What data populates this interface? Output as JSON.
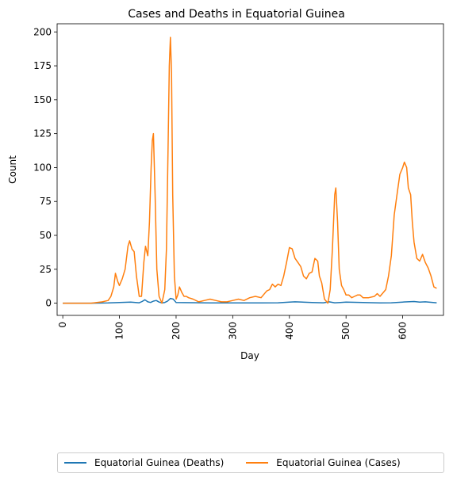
{
  "chart_data": {
    "type": "line",
    "title": "Cases and Deaths in Equatorial Guinea",
    "xlabel": "Day",
    "ylabel": "Count",
    "xlim": [
      -10,
      672
    ],
    "ylim": [
      -9,
      206
    ],
    "xticks": [
      0,
      100,
      200,
      300,
      400,
      500,
      600
    ],
    "yticks": [
      0,
      25,
      50,
      75,
      100,
      125,
      150,
      175,
      200
    ],
    "legend_position": "bottom-center",
    "grid": false,
    "series": [
      {
        "name": "Equatorial Guinea (Deaths)",
        "color": "#1f77b4",
        "x": [
          0,
          50,
          80,
          100,
          120,
          135,
          140,
          145,
          150,
          155,
          160,
          165,
          170,
          175,
          180,
          185,
          190,
          195,
          200,
          260,
          300,
          350,
          380,
          400,
          410,
          440,
          460,
          470,
          480,
          490,
          500,
          560,
          580,
          600,
          620,
          630,
          640,
          660
        ],
        "y": [
          0,
          0,
          0.2,
          0.5,
          0.8,
          0.3,
          1.2,
          2.5,
          1.0,
          0.5,
          1.5,
          2.0,
          0.8,
          0.2,
          0.5,
          1.5,
          3.5,
          3.0,
          0.5,
          0.2,
          0.2,
          0.2,
          0.3,
          0.8,
          1.0,
          0.5,
          0.3,
          1.0,
          0.3,
          0.5,
          0.8,
          0.2,
          0.3,
          0.8,
          1.2,
          0.8,
          1.0,
          0.3
        ]
      },
      {
        "name": "Equatorial Guinea (Cases)",
        "color": "#ff7f0e",
        "x": [
          0,
          50,
          60,
          70,
          80,
          85,
          90,
          93,
          97,
          100,
          105,
          110,
          115,
          118,
          122,
          126,
          130,
          135,
          139,
          143,
          146,
          150,
          153,
          156,
          158,
          160,
          163,
          166,
          170,
          175,
          180,
          183,
          186,
          188,
          190,
          192,
          194,
          197,
          200,
          203,
          206,
          210,
          214,
          218,
          222,
          230,
          240,
          250,
          260,
          270,
          280,
          290,
          300,
          310,
          320,
          330,
          340,
          350,
          360,
          365,
          370,
          375,
          380,
          385,
          390,
          395,
          400,
          405,
          410,
          415,
          420,
          425,
          430,
          435,
          440,
          445,
          450,
          453,
          457,
          462,
          468,
          472,
          476,
          480,
          482,
          485,
          488,
          492,
          496,
          500,
          505,
          510,
          515,
          520,
          525,
          530,
          540,
          550,
          555,
          560,
          570,
          575,
          580,
          585,
          590,
          595,
          600,
          603,
          607,
          610,
          614,
          617,
          620,
          625,
          630,
          635,
          640,
          645,
          650,
          655,
          660
        ],
        "y": [
          0,
          0,
          0.5,
          1,
          2,
          5,
          12,
          22,
          16,
          13,
          18,
          25,
          42,
          46,
          40,
          38,
          20,
          5,
          5,
          30,
          42,
          35,
          60,
          100,
          120,
          125,
          80,
          25,
          5,
          0,
          10,
          40,
          120,
          175,
          196,
          170,
          80,
          20,
          3,
          6,
          12,
          8,
          5,
          5,
          4,
          3,
          1,
          2,
          3,
          2,
          1,
          1,
          2,
          3,
          2,
          4,
          5,
          4,
          9,
          10,
          14,
          12,
          14,
          13,
          20,
          30,
          41,
          40,
          33,
          30,
          27,
          20,
          18,
          22,
          23,
          33,
          31,
          20,
          15,
          3,
          0,
          10,
          40,
          80,
          85,
          60,
          25,
          13,
          10,
          6,
          6,
          4,
          5,
          6,
          6,
          4,
          4,
          5,
          7,
          5,
          10,
          20,
          35,
          65,
          80,
          95,
          100,
          104,
          100,
          85,
          80,
          60,
          45,
          33,
          31,
          36,
          30,
          26,
          20,
          12,
          11
        ]
      }
    ]
  }
}
